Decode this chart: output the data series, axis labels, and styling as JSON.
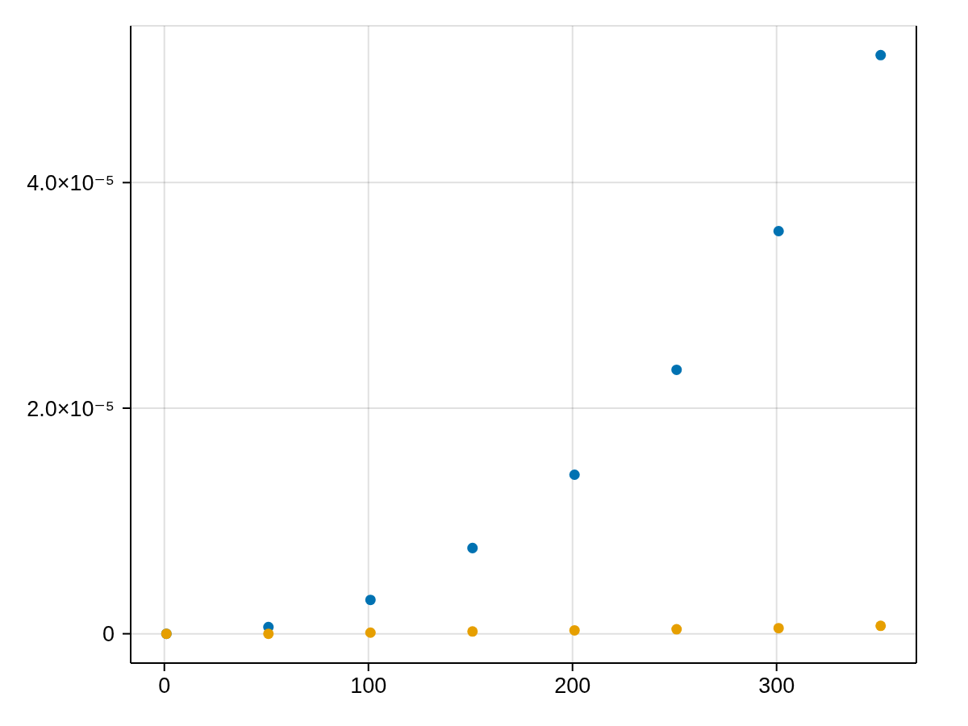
{
  "chart_data": {
    "type": "scatter",
    "x": [
      1,
      51,
      101,
      151,
      201,
      251,
      301,
      351
    ],
    "series": [
      {
        "color": "#0072b2",
        "values": [
          0,
          6e-07,
          3e-06,
          7.6e-06,
          1.41e-05,
          2.34e-05,
          3.57e-05,
          5.13e-05
        ]
      },
      {
        "color": "#e69f00",
        "values": [
          0,
          0,
          1e-07,
          2e-07,
          3e-07,
          4e-07,
          5e-07,
          7e-07
        ]
      }
    ],
    "xlim": [
      -16.5,
      368.5
    ],
    "ylim": [
      -2.6e-06,
      5.39e-05
    ],
    "xticks": [
      0,
      100,
      200,
      300
    ],
    "yticks": [
      0,
      {
        "value": 2e-05,
        "label": "2.0×10⁻⁵"
      },
      {
        "value": 4e-05,
        "label": "4.0×10⁻⁵"
      }
    ],
    "grid": true,
    "marker": "circle"
  }
}
